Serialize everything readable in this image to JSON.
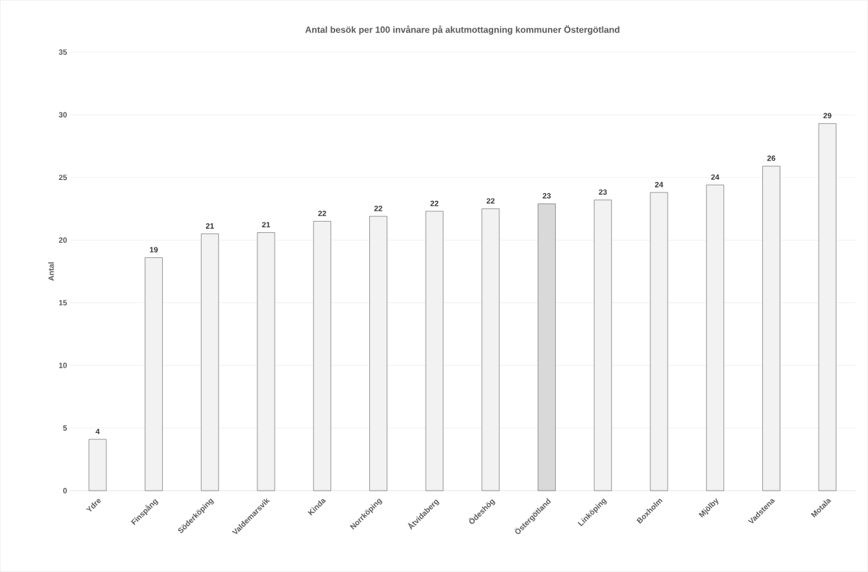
{
  "chart_data": {
    "type": "bar",
    "title": "Antal besök per 100 invånare på akutmottagning kommuner Östergötland",
    "ylabel": "Antal",
    "categories": [
      "Ydre",
      "Finspång",
      "Söderköping",
      "Valdemarsvik",
      "Kinda",
      "Norrköping",
      "Åtvidaberg",
      "Ödeshög",
      "Östergötland",
      "Linköping",
      "Boxholm",
      "Mjölby",
      "Vadstena",
      "Motala"
    ],
    "values": [
      4.1,
      18.6,
      20.5,
      20.6,
      21.5,
      21.9,
      22.3,
      22.5,
      22.9,
      23.2,
      23.8,
      24.4,
      25.9,
      29.3
    ],
    "value_labels": [
      "4",
      "19",
      "21",
      "21",
      "22",
      "22",
      "22",
      "22",
      "23",
      "23",
      "24",
      "24",
      "26",
      "29"
    ],
    "colors": [
      "#f2f2f2",
      "#f2f2f2",
      "#f2f2f2",
      "#f2f2f2",
      "#f2f2f2",
      "#f2f2f2",
      "#f2f2f2",
      "#f2f2f2",
      "#d9d9d9",
      "#f2f2f2",
      "#f2f2f2",
      "#f2f2f2",
      "#f2f2f2",
      "#f2f2f2"
    ],
    "ylim": [
      0,
      35
    ],
    "yticks": [
      0,
      5,
      10,
      15,
      20,
      25,
      30,
      35
    ],
    "grid": "y"
  }
}
